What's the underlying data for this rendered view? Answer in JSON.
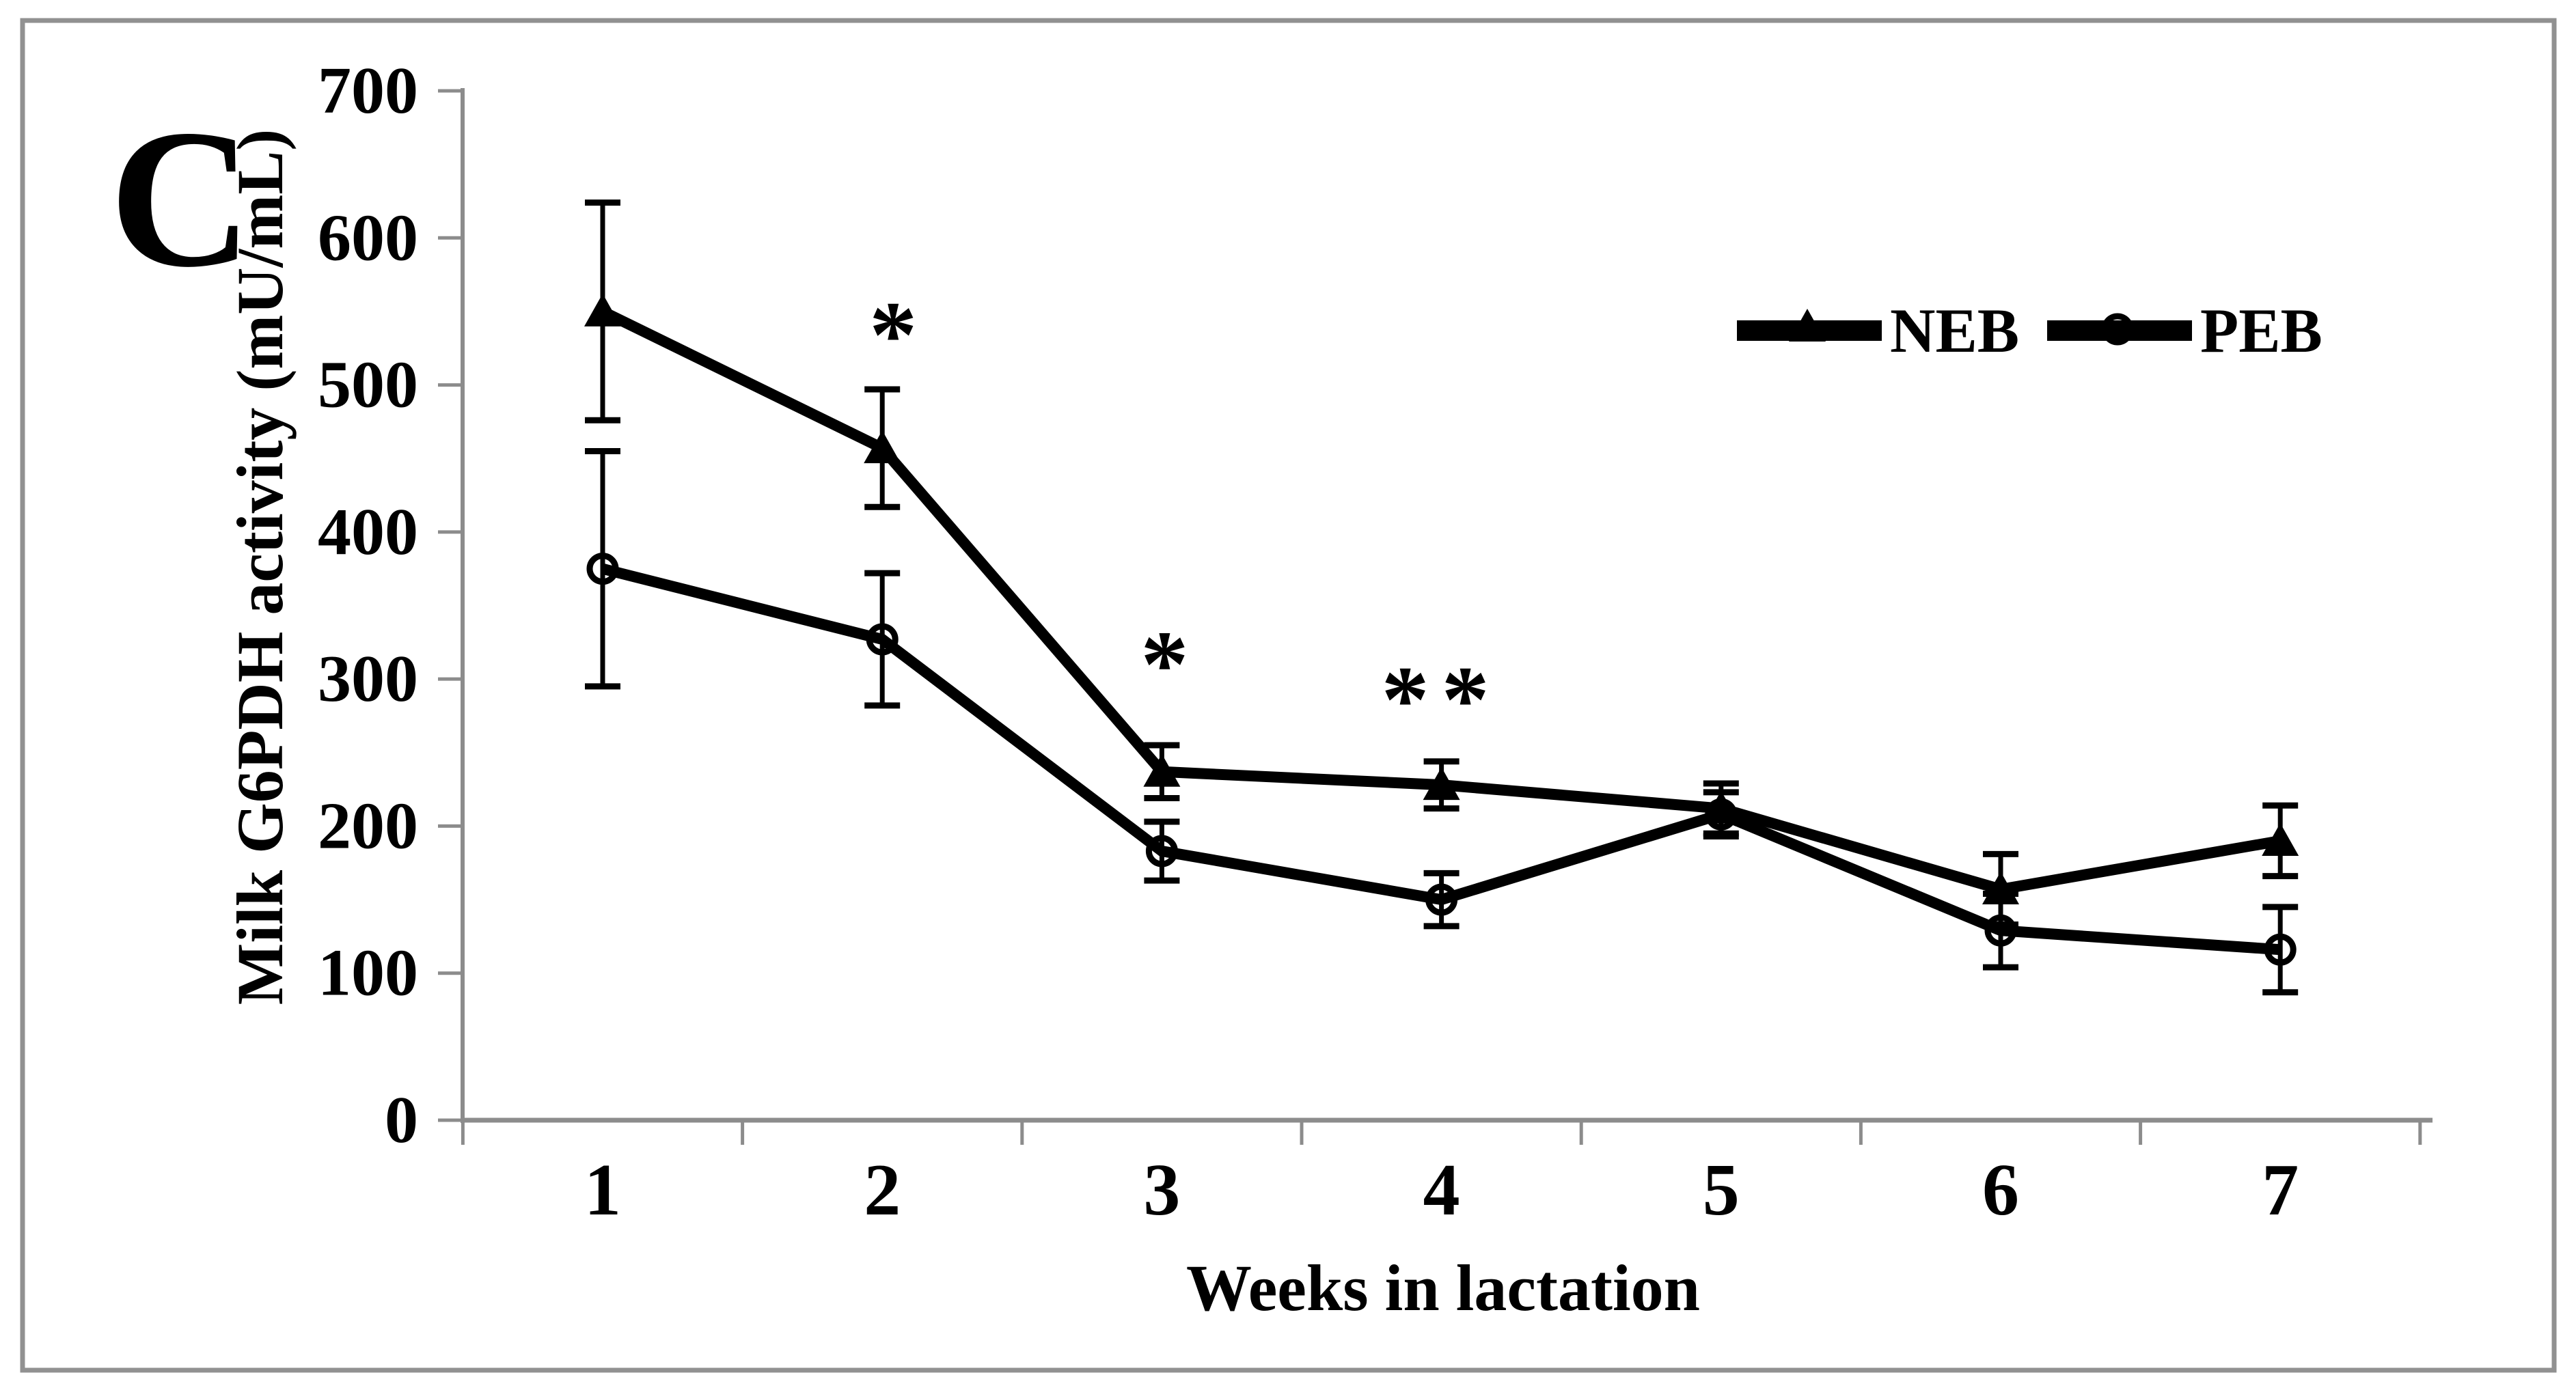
{
  "panel_label": "C",
  "chart_data": {
    "type": "line",
    "title": "",
    "xlabel": "Weeks in lactation",
    "ylabel": "Milk G6PDH activity (mU/mL)",
    "x_categories": [
      "1",
      "2",
      "3",
      "4",
      "5",
      "6",
      "7"
    ],
    "yticks": [
      "0",
      "100",
      "200",
      "300",
      "400",
      "500",
      "600",
      "700"
    ],
    "ylim": [
      0,
      700
    ],
    "ytick_step": 100,
    "grid": false,
    "legend_position": "upper-right",
    "axis_color": "#8c8c8c",
    "data_color": "#000000",
    "background_color": "#ffffff",
    "frame_color": "#919191",
    "series": [
      {
        "name": "NEB",
        "marker": "filled-triangle",
        "color": "#000000",
        "values": [
          550,
          457,
          237,
          228,
          212,
          157,
          190
        ],
        "errors": [
          74,
          40,
          18,
          16,
          17,
          24,
          24
        ]
      },
      {
        "name": "PEB",
        "marker": "open-circle",
        "color": "#000000",
        "values": [
          375,
          327,
          183,
          150,
          208,
          129,
          116
        ],
        "errors": [
          80,
          45,
          20,
          18,
          15,
          25,
          29
        ]
      }
    ],
    "annotations": [
      {
        "text": "*",
        "week": 2,
        "value": 542,
        "dx": 25,
        "meaning": "significance marker"
      },
      {
        "text": "*",
        "week": 3,
        "value": 318,
        "dx": 13,
        "meaning": "significance marker"
      },
      {
        "text": "**",
        "week": 4,
        "value": 294,
        "dx": 0,
        "meaning": "significance marker"
      }
    ]
  }
}
